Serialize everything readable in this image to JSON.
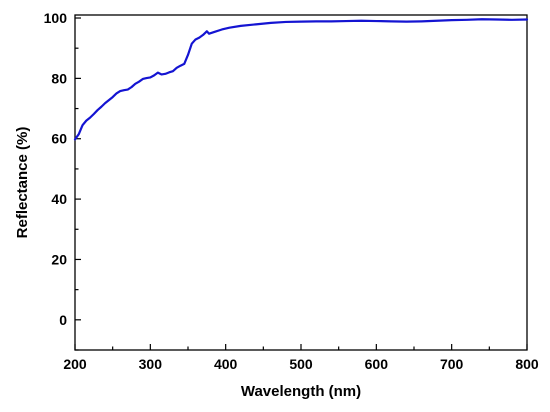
{
  "chart_data": {
    "type": "line",
    "title": "",
    "xlabel": "Wavelength (nm)",
    "ylabel": "Reflectance (%)",
    "xlim": [
      200,
      800
    ],
    "ylim": [
      -10,
      101
    ],
    "x_ticks": [
      200,
      300,
      400,
      500,
      600,
      700,
      800
    ],
    "y_ticks": [
      0,
      20,
      40,
      60,
      80,
      100
    ],
    "grid": false,
    "legend": "none",
    "series": [
      {
        "color": "#1414d2",
        "points": [
          [
            200,
            59.8
          ],
          [
            205,
            61.5
          ],
          [
            210,
            64.5
          ],
          [
            215,
            66.0
          ],
          [
            220,
            67.0
          ],
          [
            225,
            68.2
          ],
          [
            230,
            69.5
          ],
          [
            235,
            70.6
          ],
          [
            240,
            71.8
          ],
          [
            245,
            72.8
          ],
          [
            250,
            73.8
          ],
          [
            255,
            75.0
          ],
          [
            260,
            75.8
          ],
          [
            265,
            76.1
          ],
          [
            270,
            76.3
          ],
          [
            275,
            77.1
          ],
          [
            280,
            78.2
          ],
          [
            285,
            78.9
          ],
          [
            290,
            79.8
          ],
          [
            295,
            80.1
          ],
          [
            300,
            80.3
          ],
          [
            305,
            81.0
          ],
          [
            310,
            81.9
          ],
          [
            315,
            81.3
          ],
          [
            320,
            81.5
          ],
          [
            325,
            82.0
          ],
          [
            330,
            82.4
          ],
          [
            335,
            83.5
          ],
          [
            340,
            84.2
          ],
          [
            345,
            84.8
          ],
          [
            350,
            87.8
          ],
          [
            355,
            91.5
          ],
          [
            360,
            92.9
          ],
          [
            365,
            93.5
          ],
          [
            370,
            94.4
          ],
          [
            375,
            95.6
          ],
          [
            378,
            94.8
          ],
          [
            385,
            95.4
          ],
          [
            395,
            96.2
          ],
          [
            405,
            96.8
          ],
          [
            420,
            97.4
          ],
          [
            440,
            97.9
          ],
          [
            460,
            98.4
          ],
          [
            480,
            98.7
          ],
          [
            500,
            98.8
          ],
          [
            520,
            98.9
          ],
          [
            540,
            98.9
          ],
          [
            560,
            99.0
          ],
          [
            580,
            99.1
          ],
          [
            600,
            99.0
          ],
          [
            620,
            98.9
          ],
          [
            640,
            98.8
          ],
          [
            660,
            98.9
          ],
          [
            680,
            99.1
          ],
          [
            700,
            99.3
          ],
          [
            720,
            99.4
          ],
          [
            740,
            99.6
          ],
          [
            760,
            99.5
          ],
          [
            780,
            99.4
          ],
          [
            800,
            99.5
          ]
        ]
      }
    ]
  }
}
